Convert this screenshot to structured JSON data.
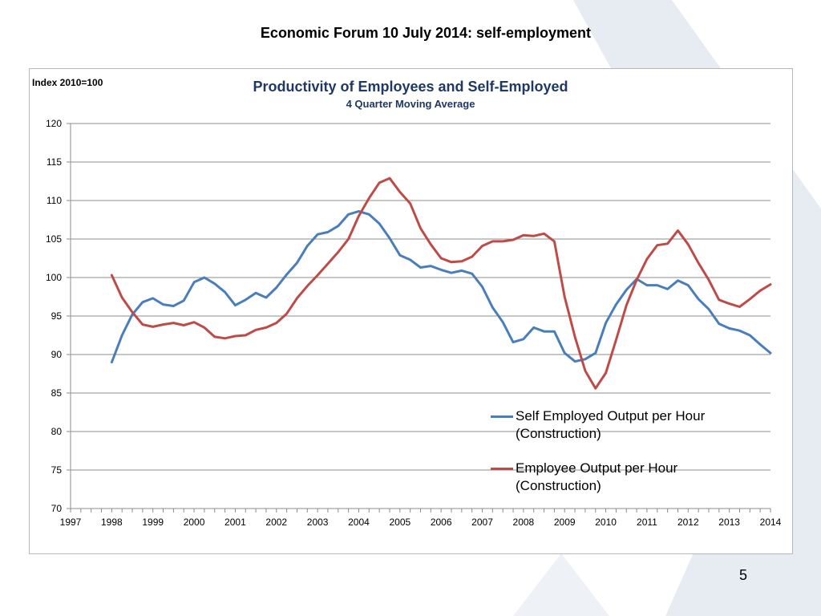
{
  "slide": {
    "title": "Economic Forum 10 July 2014: self-employment",
    "page_number": "5"
  },
  "chart_data": {
    "type": "line",
    "title": "Productivity of Employees and Self-Employed",
    "subtitle": "4 Quarter Moving Average",
    "index_note": "Index 2010=100",
    "xlabel": "",
    "ylabel": "",
    "x_start": 1998.0,
    "x_step": 0.25,
    "xlim": [
      1997,
      2014
    ],
    "ylim": [
      70,
      120
    ],
    "y_ticks": [
      "70",
      "75",
      "80",
      "85",
      "90",
      "95",
      "100",
      "105",
      "110",
      "115",
      "120"
    ],
    "x_ticks": [
      "1997",
      "1998",
      "1999",
      "2000",
      "2001",
      "2002",
      "2003",
      "2004",
      "2005",
      "2006",
      "2007",
      "2008",
      "2009",
      "2010",
      "2011",
      "2012",
      "2013",
      "2014"
    ],
    "grid": true,
    "legend_position": "bottom-right",
    "series": [
      {
        "name": "Self Employed Output per Hour (Construction)",
        "color": "#4a7ebb",
        "values": [
          89.0,
          92.5,
          95.2,
          96.8,
          97.3,
          96.5,
          96.3,
          97.0,
          99.4,
          100.0,
          99.2,
          98.1,
          96.4,
          97.1,
          98.0,
          97.4,
          98.7,
          100.4,
          101.9,
          104.1,
          105.6,
          105.9,
          106.7,
          108.2,
          108.6,
          108.2,
          107.0,
          105.1,
          102.9,
          102.3,
          101.3,
          101.5,
          101.0,
          100.6,
          100.9,
          100.5,
          98.8,
          96.1,
          94.2,
          91.6,
          92.0,
          93.5,
          93.0,
          93.0,
          90.2,
          89.1,
          89.4,
          90.2,
          94.1,
          96.5,
          98.4,
          99.8,
          99.0,
          99.0,
          98.5,
          99.6,
          99.0,
          97.2,
          95.9,
          94.0,
          93.4,
          93.1,
          92.5,
          91.3,
          90.2
        ]
      },
      {
        "name": "Employee Output per Hour (Construction)",
        "color": "#be4b48",
        "values": [
          100.3,
          97.4,
          95.5,
          93.9,
          93.6,
          93.9,
          94.1,
          93.8,
          94.2,
          93.5,
          92.3,
          92.1,
          92.4,
          92.5,
          93.2,
          93.5,
          94.1,
          95.3,
          97.3,
          98.9,
          100.3,
          101.8,
          103.3,
          105.0,
          108.0,
          110.3,
          112.3,
          112.9,
          111.1,
          109.6,
          106.4,
          104.3,
          102.5,
          102.0,
          102.1,
          102.7,
          104.1,
          104.7,
          104.7,
          104.9,
          105.5,
          105.4,
          105.7,
          104.7,
          97.5,
          92.3,
          87.9,
          85.6,
          87.6,
          91.9,
          96.4,
          99.7,
          102.4,
          104.2,
          104.4,
          106.1,
          104.3,
          101.9,
          99.7,
          97.1,
          96.6,
          96.2,
          97.2,
          98.3,
          99.1
        ]
      }
    ]
  }
}
